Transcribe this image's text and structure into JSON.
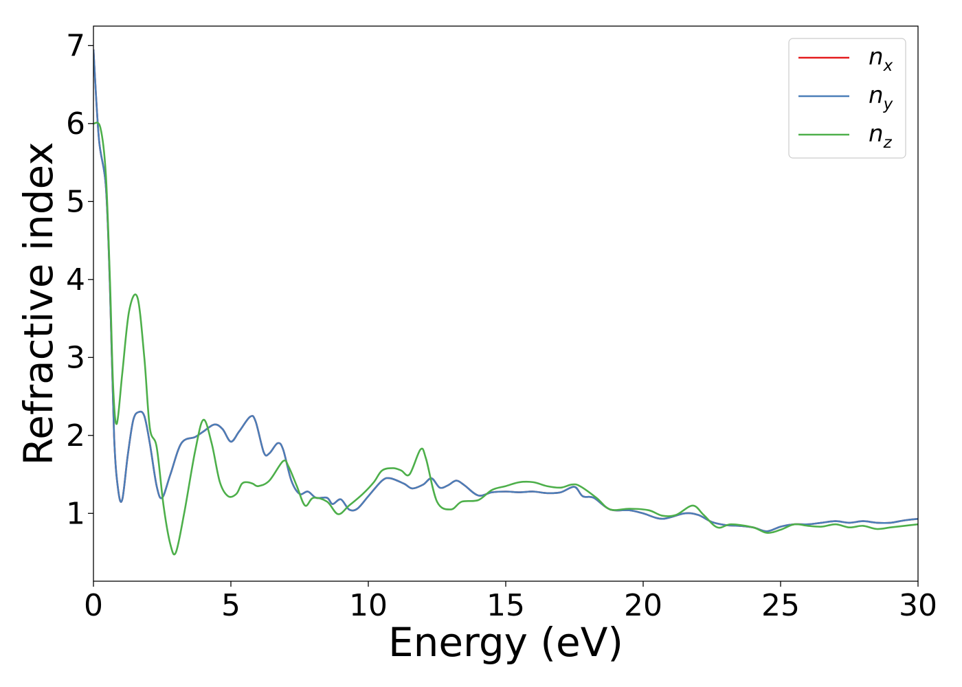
{
  "chart_data": {
    "type": "line",
    "xlabel": "Energy (eV)",
    "ylabel": "Refractive index",
    "xlim": [
      0,
      30
    ],
    "ylim": [
      0.13,
      7.25
    ],
    "x_ticks": [
      0,
      5,
      10,
      15,
      20,
      25,
      30
    ],
    "y_ticks": [
      1,
      2,
      3,
      4,
      5,
      6,
      7
    ],
    "grid": false,
    "legend_position": "top-right",
    "series": [
      {
        "name": "n_x",
        "legend_main": "n",
        "legend_sub": "x",
        "color": "#e41a1c",
        "points": [
          [
            0,
            6.95
          ],
          [
            0.2,
            5.8
          ],
          [
            0.45,
            5.2
          ],
          [
            0.6,
            3.9
          ],
          [
            0.75,
            2.0
          ],
          [
            0.9,
            1.3
          ],
          [
            1.05,
            1.18
          ],
          [
            1.25,
            1.75
          ],
          [
            1.45,
            2.2
          ],
          [
            1.65,
            2.3
          ],
          [
            1.85,
            2.25
          ],
          [
            2.05,
            1.9
          ],
          [
            2.3,
            1.35
          ],
          [
            2.5,
            1.2
          ],
          [
            2.8,
            1.5
          ],
          [
            3.2,
            1.9
          ],
          [
            3.7,
            1.98
          ],
          [
            4.0,
            2.05
          ],
          [
            4.4,
            2.14
          ],
          [
            4.7,
            2.08
          ],
          [
            5.0,
            1.92
          ],
          [
            5.3,
            2.05
          ],
          [
            5.7,
            2.24
          ],
          [
            5.9,
            2.18
          ],
          [
            6.2,
            1.78
          ],
          [
            6.4,
            1.77
          ],
          [
            6.7,
            1.9
          ],
          [
            6.9,
            1.82
          ],
          [
            7.2,
            1.42
          ],
          [
            7.5,
            1.25
          ],
          [
            7.8,
            1.28
          ],
          [
            8.1,
            1.2
          ],
          [
            8.5,
            1.2
          ],
          [
            8.7,
            1.12
          ],
          [
            9.0,
            1.18
          ],
          [
            9.3,
            1.05
          ],
          [
            9.6,
            1.06
          ],
          [
            10.0,
            1.22
          ],
          [
            10.5,
            1.42
          ],
          [
            10.8,
            1.45
          ],
          [
            11.3,
            1.38
          ],
          [
            11.6,
            1.32
          ],
          [
            12.0,
            1.37
          ],
          [
            12.3,
            1.45
          ],
          [
            12.6,
            1.33
          ],
          [
            12.9,
            1.36
          ],
          [
            13.2,
            1.42
          ],
          [
            13.5,
            1.36
          ],
          [
            14.0,
            1.23
          ],
          [
            14.5,
            1.27
          ],
          [
            15.0,
            1.28
          ],
          [
            15.5,
            1.27
          ],
          [
            16.0,
            1.28
          ],
          [
            16.5,
            1.26
          ],
          [
            17.0,
            1.27
          ],
          [
            17.5,
            1.34
          ],
          [
            17.8,
            1.22
          ],
          [
            18.2,
            1.2
          ],
          [
            18.8,
            1.05
          ],
          [
            19.5,
            1.04
          ],
          [
            20.0,
            1.0
          ],
          [
            20.7,
            0.93
          ],
          [
            21.5,
            1.0
          ],
          [
            22.0,
            0.98
          ],
          [
            22.5,
            0.89
          ],
          [
            23.0,
            0.85
          ],
          [
            23.5,
            0.84
          ],
          [
            24.0,
            0.82
          ],
          [
            24.5,
            0.77
          ],
          [
            25.0,
            0.83
          ],
          [
            25.5,
            0.86
          ],
          [
            26.0,
            0.86
          ],
          [
            26.5,
            0.88
          ],
          [
            27.0,
            0.9
          ],
          [
            27.5,
            0.88
          ],
          [
            28.0,
            0.9
          ],
          [
            28.5,
            0.88
          ],
          [
            29.0,
            0.88
          ],
          [
            29.5,
            0.91
          ],
          [
            30.0,
            0.93
          ]
        ]
      },
      {
        "name": "n_y",
        "legend_main": "n",
        "legend_sub": "y",
        "color": "#4a7eb8",
        "points": [
          [
            0,
            6.95
          ],
          [
            0.2,
            5.8
          ],
          [
            0.45,
            5.2
          ],
          [
            0.6,
            3.9
          ],
          [
            0.75,
            2.0
          ],
          [
            0.9,
            1.3
          ],
          [
            1.05,
            1.18
          ],
          [
            1.25,
            1.75
          ],
          [
            1.45,
            2.2
          ],
          [
            1.65,
            2.3
          ],
          [
            1.85,
            2.25
          ],
          [
            2.05,
            1.9
          ],
          [
            2.3,
            1.35
          ],
          [
            2.5,
            1.2
          ],
          [
            2.8,
            1.5
          ],
          [
            3.2,
            1.9
          ],
          [
            3.7,
            1.98
          ],
          [
            4.0,
            2.05
          ],
          [
            4.4,
            2.14
          ],
          [
            4.7,
            2.08
          ],
          [
            5.0,
            1.92
          ],
          [
            5.3,
            2.05
          ],
          [
            5.7,
            2.24
          ],
          [
            5.9,
            2.18
          ],
          [
            6.2,
            1.78
          ],
          [
            6.4,
            1.77
          ],
          [
            6.7,
            1.9
          ],
          [
            6.9,
            1.82
          ],
          [
            7.2,
            1.42
          ],
          [
            7.5,
            1.25
          ],
          [
            7.8,
            1.28
          ],
          [
            8.1,
            1.2
          ],
          [
            8.5,
            1.2
          ],
          [
            8.7,
            1.12
          ],
          [
            9.0,
            1.18
          ],
          [
            9.3,
            1.05
          ],
          [
            9.6,
            1.06
          ],
          [
            10.0,
            1.22
          ],
          [
            10.5,
            1.42
          ],
          [
            10.8,
            1.45
          ],
          [
            11.3,
            1.38
          ],
          [
            11.6,
            1.32
          ],
          [
            12.0,
            1.37
          ],
          [
            12.3,
            1.45
          ],
          [
            12.6,
            1.33
          ],
          [
            12.9,
            1.36
          ],
          [
            13.2,
            1.42
          ],
          [
            13.5,
            1.36
          ],
          [
            14.0,
            1.23
          ],
          [
            14.5,
            1.27
          ],
          [
            15.0,
            1.28
          ],
          [
            15.5,
            1.27
          ],
          [
            16.0,
            1.28
          ],
          [
            16.5,
            1.26
          ],
          [
            17.0,
            1.27
          ],
          [
            17.5,
            1.34
          ],
          [
            17.8,
            1.22
          ],
          [
            18.2,
            1.2
          ],
          [
            18.8,
            1.05
          ],
          [
            19.5,
            1.04
          ],
          [
            20.0,
            1.0
          ],
          [
            20.7,
            0.93
          ],
          [
            21.5,
            1.0
          ],
          [
            22.0,
            0.98
          ],
          [
            22.5,
            0.89
          ],
          [
            23.0,
            0.85
          ],
          [
            23.5,
            0.84
          ],
          [
            24.0,
            0.82
          ],
          [
            24.5,
            0.77
          ],
          [
            25.0,
            0.83
          ],
          [
            25.5,
            0.86
          ],
          [
            26.0,
            0.86
          ],
          [
            26.5,
            0.88
          ],
          [
            27.0,
            0.9
          ],
          [
            27.5,
            0.88
          ],
          [
            28.0,
            0.9
          ],
          [
            28.5,
            0.88
          ],
          [
            29.0,
            0.88
          ],
          [
            29.5,
            0.91
          ],
          [
            30.0,
            0.93
          ]
        ]
      },
      {
        "name": "n_z",
        "legend_main": "n",
        "legend_sub": "z",
        "color": "#4daf4a",
        "points": [
          [
            0,
            6.0
          ],
          [
            0.25,
            5.95
          ],
          [
            0.45,
            5.35
          ],
          [
            0.6,
            4.0
          ],
          [
            0.72,
            2.6
          ],
          [
            0.85,
            2.15
          ],
          [
            1.05,
            2.8
          ],
          [
            1.3,
            3.6
          ],
          [
            1.6,
            3.77
          ],
          [
            1.85,
            3.0
          ],
          [
            2.05,
            2.1
          ],
          [
            2.3,
            1.85
          ],
          [
            2.55,
            1.1
          ],
          [
            2.8,
            0.6
          ],
          [
            3.0,
            0.5
          ],
          [
            3.3,
            1.0
          ],
          [
            3.7,
            1.8
          ],
          [
            4.0,
            2.2
          ],
          [
            4.3,
            1.9
          ],
          [
            4.6,
            1.4
          ],
          [
            4.9,
            1.22
          ],
          [
            5.2,
            1.25
          ],
          [
            5.4,
            1.38
          ],
          [
            5.6,
            1.4
          ],
          [
            5.8,
            1.38
          ],
          [
            6.0,
            1.35
          ],
          [
            6.4,
            1.42
          ],
          [
            6.9,
            1.67
          ],
          [
            7.1,
            1.6
          ],
          [
            7.4,
            1.35
          ],
          [
            7.7,
            1.1
          ],
          [
            8.0,
            1.2
          ],
          [
            8.5,
            1.15
          ],
          [
            8.9,
            0.99
          ],
          [
            9.3,
            1.1
          ],
          [
            9.8,
            1.25
          ],
          [
            10.2,
            1.4
          ],
          [
            10.5,
            1.55
          ],
          [
            10.9,
            1.58
          ],
          [
            11.2,
            1.55
          ],
          [
            11.5,
            1.5
          ],
          [
            11.9,
            1.82
          ],
          [
            12.1,
            1.7
          ],
          [
            12.5,
            1.15
          ],
          [
            13.0,
            1.05
          ],
          [
            13.4,
            1.15
          ],
          [
            14.0,
            1.17
          ],
          [
            14.5,
            1.3
          ],
          [
            15.0,
            1.35
          ],
          [
            15.5,
            1.4
          ],
          [
            16.0,
            1.4
          ],
          [
            16.5,
            1.35
          ],
          [
            17.0,
            1.33
          ],
          [
            17.4,
            1.37
          ],
          [
            17.7,
            1.35
          ],
          [
            18.3,
            1.2
          ],
          [
            18.8,
            1.05
          ],
          [
            19.5,
            1.06
          ],
          [
            20.2,
            1.04
          ],
          [
            20.7,
            0.97
          ],
          [
            21.2,
            0.98
          ],
          [
            21.8,
            1.1
          ],
          [
            22.2,
            0.98
          ],
          [
            22.7,
            0.82
          ],
          [
            23.2,
            0.86
          ],
          [
            24.0,
            0.82
          ],
          [
            24.5,
            0.75
          ],
          [
            25.0,
            0.79
          ],
          [
            25.5,
            0.86
          ],
          [
            26.0,
            0.84
          ],
          [
            26.5,
            0.83
          ],
          [
            27.0,
            0.86
          ],
          [
            27.5,
            0.82
          ],
          [
            28.0,
            0.84
          ],
          [
            28.5,
            0.8
          ],
          [
            29.0,
            0.82
          ],
          [
            29.5,
            0.84
          ],
          [
            30.0,
            0.86
          ]
        ]
      }
    ]
  }
}
